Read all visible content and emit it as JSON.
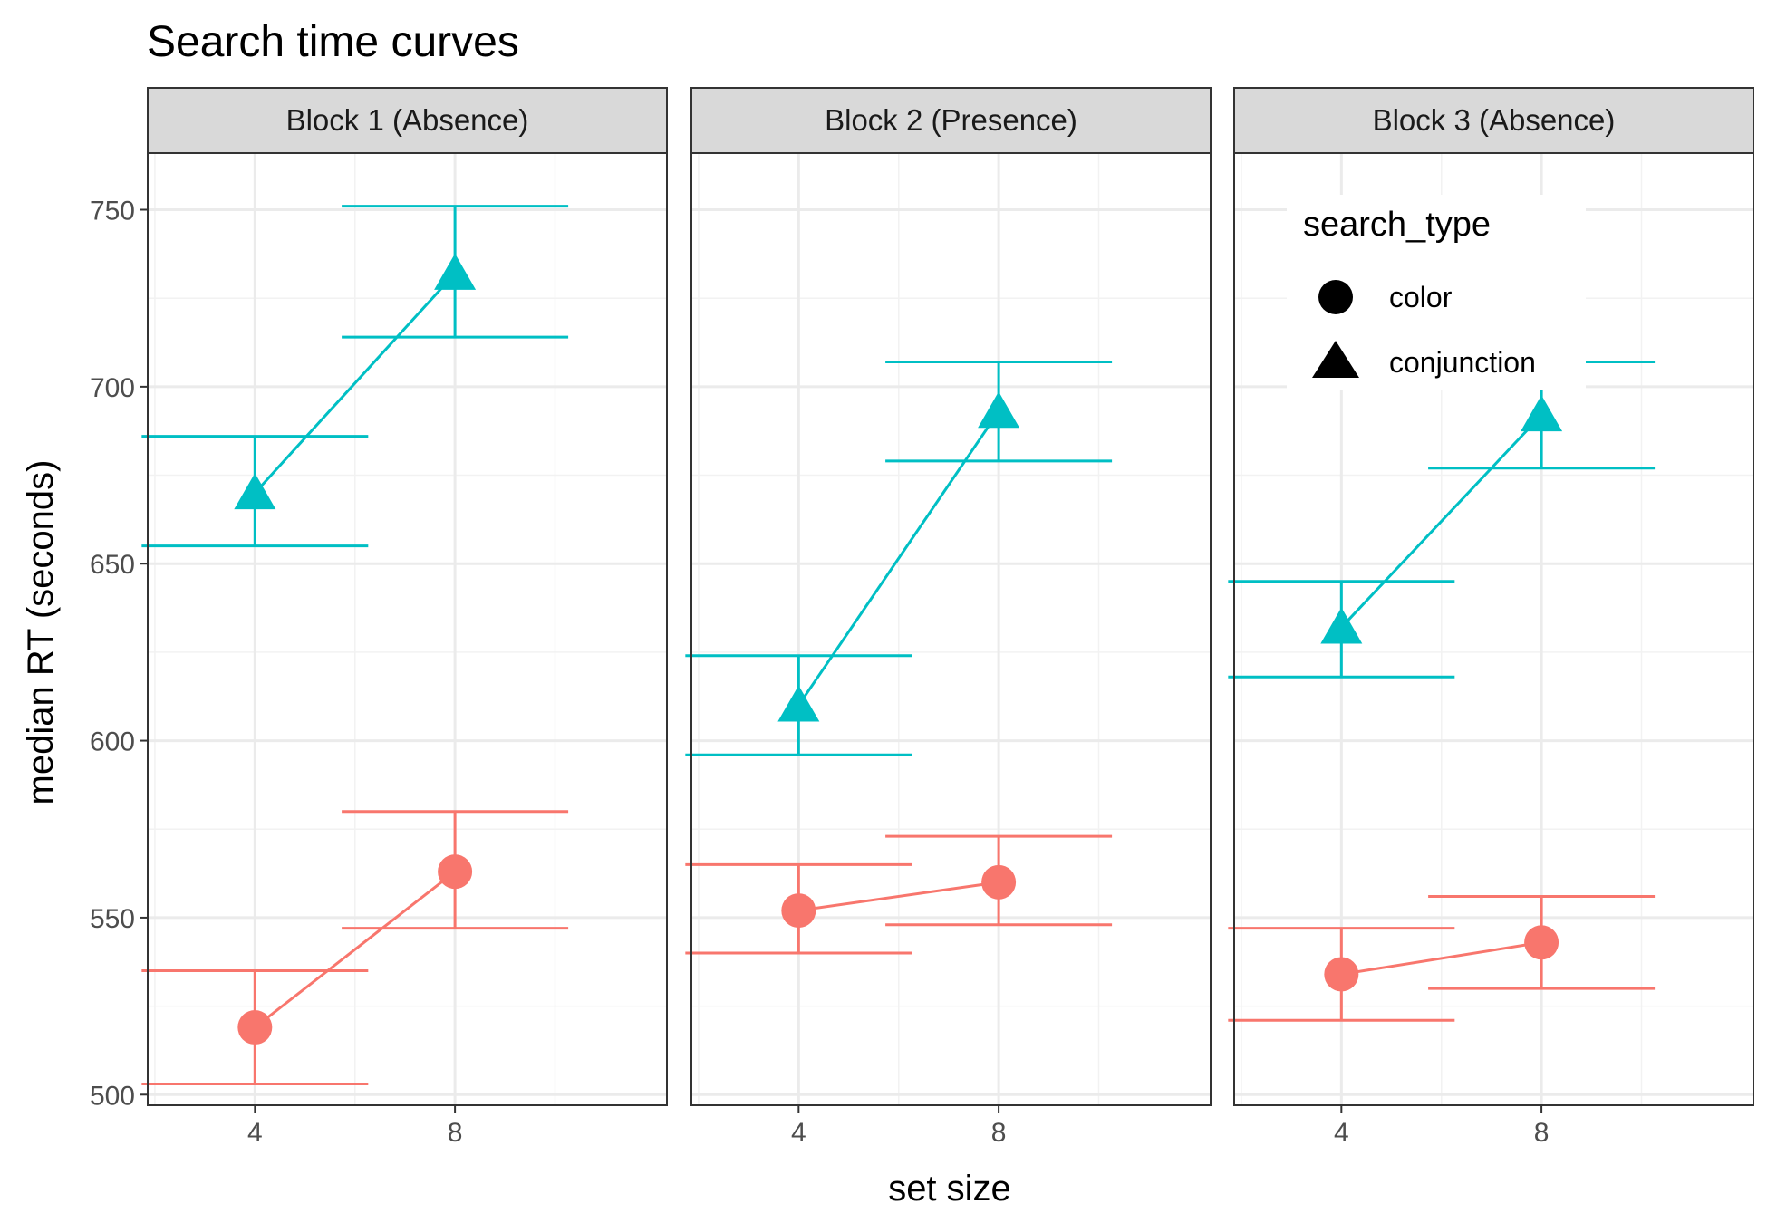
{
  "chart_data": {
    "type": "line",
    "title": "Search time curves",
    "xlabel": "set size",
    "ylabel": "median RT (seconds)",
    "x_ticks": [
      "4",
      "8"
    ],
    "y_ticks": [
      500,
      550,
      600,
      650,
      700,
      750
    ],
    "ylim": [
      497,
      766
    ],
    "legend": {
      "title": "search_type",
      "placement": "top-right (inside panel 3)",
      "entries": [
        {
          "label": "color",
          "shape": "circle"
        },
        {
          "label": "conjunction",
          "shape": "triangle"
        }
      ]
    },
    "colors": {
      "color": "#F8766D",
      "conjunction": "#00BFC4"
    },
    "panels": [
      {
        "label": "Block 1 (Absence)",
        "series": [
          {
            "name": "color",
            "x": [
              4,
              8
            ],
            "y": [
              519,
              563
            ],
            "ymin": [
              503,
              547
            ],
            "ymax": [
              535,
              580
            ]
          },
          {
            "name": "conjunction",
            "x": [
              4,
              8
            ],
            "y": [
              670,
              732
            ],
            "ymin": [
              655,
              714
            ],
            "ymax": [
              686,
              751
            ]
          }
        ]
      },
      {
        "label": "Block 2 (Presence)",
        "series": [
          {
            "name": "color",
            "x": [
              4,
              8
            ],
            "y": [
              552,
              560
            ],
            "ymin": [
              540,
              548
            ],
            "ymax": [
              565,
              573
            ]
          },
          {
            "name": "conjunction",
            "x": [
              4,
              8
            ],
            "y": [
              610,
              693
            ],
            "ymin": [
              596,
              679
            ],
            "ymax": [
              624,
              707
            ]
          }
        ]
      },
      {
        "label": "Block 3 (Absence)",
        "series": [
          {
            "name": "color",
            "x": [
              4,
              8
            ],
            "y": [
              534,
              543
            ],
            "ymin": [
              521,
              530
            ],
            "ymax": [
              547,
              556
            ]
          },
          {
            "name": "conjunction",
            "x": [
              4,
              8
            ],
            "y": [
              632,
              692
            ],
            "ymin": [
              618,
              677
            ],
            "ymax": [
              645,
              707
            ]
          }
        ]
      }
    ]
  }
}
